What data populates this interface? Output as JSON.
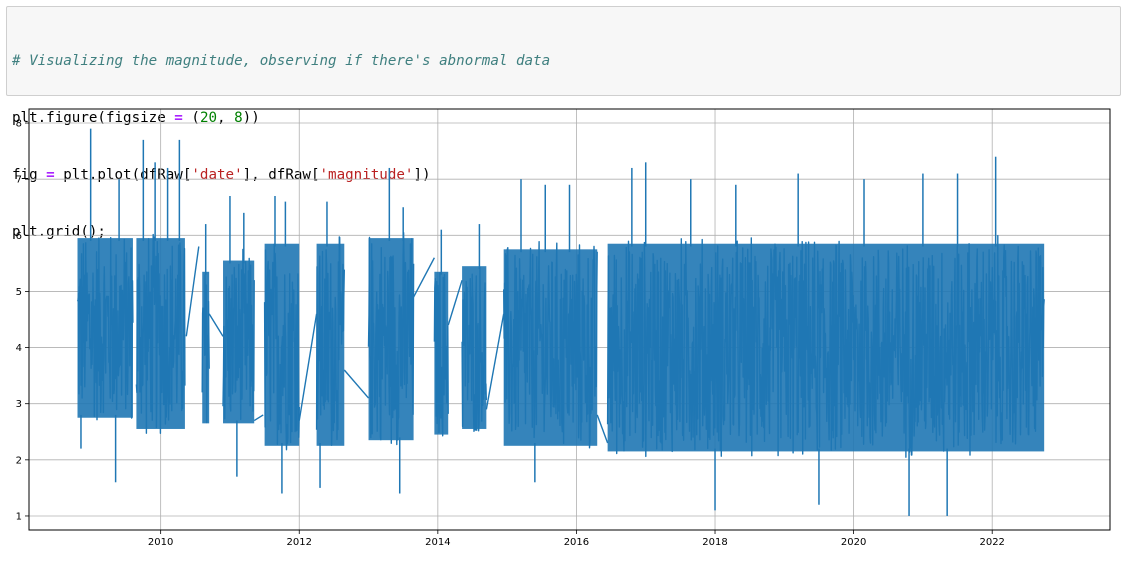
{
  "code_cell": {
    "lines": [
      [
        {
          "t": "# Visualizing the magnitude, observing if there's abnormal data",
          "c": "c-com"
        }
      ],
      [
        {
          "t": "plt.figure(figsize ",
          "c": ""
        },
        {
          "t": "=",
          "c": "c-op"
        },
        {
          "t": " (",
          "c": ""
        },
        {
          "t": "20",
          "c": "c-num"
        },
        {
          "t": ", ",
          "c": ""
        },
        {
          "t": "8",
          "c": "c-num"
        },
        {
          "t": "))",
          "c": ""
        }
      ],
      [
        {
          "t": "fig ",
          "c": ""
        },
        {
          "t": "=",
          "c": "c-op"
        },
        {
          "t": " plt.plot(dfRaw[",
          "c": ""
        },
        {
          "t": "'date'",
          "c": "c-str"
        },
        {
          "t": "], dfRaw[",
          "c": ""
        },
        {
          "t": "'magnitude'",
          "c": "c-str"
        },
        {
          "t": "])",
          "c": ""
        }
      ],
      [
        {
          "t": "plt.grid();",
          "c": ""
        }
      ]
    ]
  },
  "chart_data": {
    "type": "line",
    "title": "",
    "xlabel": "",
    "ylabel": "",
    "xlim": [
      2008.1,
      2023.7
    ],
    "ylim": [
      0.75,
      8.25
    ],
    "xticks": [
      2010,
      2012,
      2014,
      2016,
      2018,
      2020,
      2022
    ],
    "xtick_labels": [
      "2010",
      "2012",
      "2014",
      "2016",
      "2018",
      "2020",
      "2022"
    ],
    "yticks": [
      1,
      2,
      3,
      4,
      5,
      6,
      7,
      8
    ],
    "ytick_labels": [
      "1",
      "2",
      "3",
      "4",
      "5",
      "6",
      "7",
      "8"
    ],
    "grid": true,
    "line_color": "#1f77b4",
    "series": [
      {
        "x_start": 2008.8,
        "x_end": 2022.75,
        "segments": [
          {
            "x": [
              2008.8,
              2009.6
            ],
            "lo": 2.5,
            "hi": 6.2,
            "peaks": [
              [
                2008.99,
                7.9
              ],
              [
                2009.4,
                7.0
              ],
              [
                2008.85,
                2.2
              ],
              [
                2009.35,
                1.6
              ]
            ]
          },
          {
            "x": [
              2009.65,
              2010.35
            ],
            "lo": 2.3,
            "hi": 6.2,
            "peaks": [
              [
                2009.75,
                7.7
              ],
              [
                2009.92,
                7.3
              ],
              [
                2010.27,
                7.7
              ],
              [
                2010.1,
                7.2
              ]
            ]
          },
          {
            "x": [
              2010.6,
              2010.7
            ],
            "lo": 2.4,
            "hi": 5.6,
            "peaks": [
              [
                2010.65,
                6.2
              ]
            ]
          },
          {
            "x": [
              2010.9,
              2011.35
            ],
            "lo": 2.4,
            "hi": 5.8,
            "peaks": [
              [
                2011.0,
                6.7
              ],
              [
                2011.2,
                6.4
              ],
              [
                2011.1,
                1.7
              ]
            ]
          },
          {
            "x": [
              2011.5,
              2012.0
            ],
            "lo": 2.0,
            "hi": 6.1,
            "peaks": [
              [
                2011.65,
                6.7
              ],
              [
                2011.8,
                6.6
              ],
              [
                2011.75,
                1.4
              ]
            ]
          },
          {
            "x": [
              2012.25,
              2012.65
            ],
            "lo": 2.0,
            "hi": 6.1,
            "peaks": [
              [
                2012.4,
                6.6
              ],
              [
                2012.3,
                1.5
              ]
            ]
          },
          {
            "x": [
              2013.0,
              2013.65
            ],
            "lo": 2.1,
            "hi": 6.2,
            "peaks": [
              [
                2013.3,
                7.2
              ],
              [
                2013.5,
                6.5
              ],
              [
                2013.45,
                1.4
              ]
            ]
          },
          {
            "x": [
              2013.95,
              2014.15
            ],
            "lo": 2.2,
            "hi": 5.6,
            "peaks": [
              [
                2014.05,
                6.1
              ]
            ]
          },
          {
            "x": [
              2014.35,
              2014.7
            ],
            "lo": 2.3,
            "hi": 5.7,
            "peaks": [
              [
                2014.6,
                6.2
              ]
            ]
          },
          {
            "x": [
              2014.95,
              2016.3
            ],
            "lo": 2.0,
            "hi": 6.0,
            "peaks": [
              [
                2015.2,
                7.0
              ],
              [
                2015.55,
                6.9
              ],
              [
                2015.9,
                6.9
              ],
              [
                2015.4,
                1.6
              ]
            ]
          },
          {
            "x": [
              2016.45,
              2022.75
            ],
            "lo": 1.9,
            "hi": 6.1,
            "peaks": [
              [
                2016.8,
                7.2
              ],
              [
                2017.0,
                7.3
              ],
              [
                2017.65,
                7.0
              ],
              [
                2018.3,
                6.9
              ],
              [
                2019.2,
                7.1
              ],
              [
                2020.15,
                7.0
              ],
              [
                2021.0,
                7.1
              ],
              [
                2021.5,
                7.1
              ],
              [
                2022.05,
                7.4
              ],
              [
                2018.0,
                1.1
              ],
              [
                2019.5,
                1.2
              ],
              [
                2020.8,
                1.0
              ],
              [
                2021.35,
                1.0
              ]
            ]
          }
        ],
        "connectors": [
          [
            [
              2010.37,
              4.2
            ],
            [
              2010.55,
              5.8
            ]
          ],
          [
            [
              2010.7,
              4.6
            ],
            [
              2010.9,
              4.2
            ]
          ],
          [
            [
              2011.35,
              2.7
            ],
            [
              2011.48,
              2.8
            ]
          ],
          [
            [
              2012.0,
              2.7
            ],
            [
              2012.25,
              4.6
            ]
          ],
          [
            [
              2012.65,
              3.6
            ],
            [
              2013.0,
              3.1
            ]
          ],
          [
            [
              2013.65,
              4.9
            ],
            [
              2013.95,
              5.6
            ]
          ],
          [
            [
              2014.15,
              4.4
            ],
            [
              2014.35,
              5.2
            ]
          ],
          [
            [
              2014.7,
              2.9
            ],
            [
              2014.95,
              4.6
            ]
          ],
          [
            [
              2016.3,
              2.8
            ],
            [
              2016.45,
              2.3
            ]
          ]
        ]
      }
    ]
  }
}
